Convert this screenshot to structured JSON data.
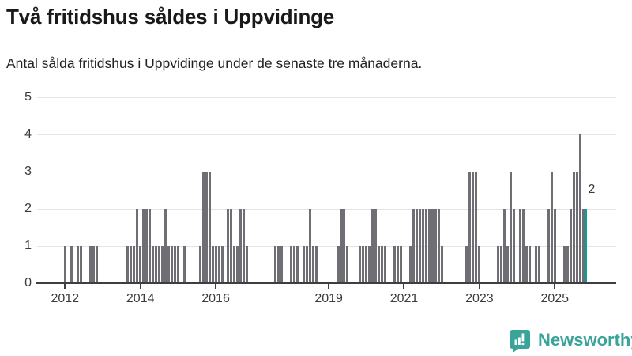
{
  "header": {
    "title": "Två fritidshus såldes i Uppvidinge",
    "subtitle": "Antal sålda fritidshus i Uppvidinge under de senaste tre månaderna."
  },
  "branding": {
    "name": "Newsworthy",
    "color": "#3ba49a",
    "icon": "newsworthy-speech-bubble-bar-chart-icon"
  },
  "chart_data": {
    "type": "bar",
    "title": "Två fritidshus såldes i Uppvidinge",
    "subtitle": "Antal sålda fritidshus i Uppvidinge under de senaste tre månaderna.",
    "x_unit": "month",
    "x_start_label_year": "2012",
    "grid": true,
    "ylim": [
      0,
      5
    ],
    "y_ticks": [
      0,
      1,
      2,
      3,
      4,
      5
    ],
    "x_ticks": [
      {
        "label": "2012",
        "month_index": 0
      },
      {
        "label": "2014",
        "month_index": 24
      },
      {
        "label": "2016",
        "month_index": 48
      },
      {
        "label": "2019",
        "month_index": 84
      },
      {
        "label": "2021",
        "month_index": 108
      },
      {
        "label": "2023",
        "month_index": 132
      },
      {
        "label": "2025",
        "month_index": 156
      }
    ],
    "values": [
      1,
      0,
      1,
      0,
      1,
      1,
      0,
      0,
      1,
      1,
      1,
      0,
      0,
      0,
      0,
      0,
      0,
      0,
      0,
      0,
      1,
      1,
      1,
      2,
      1,
      2,
      2,
      2,
      1,
      1,
      1,
      1,
      2,
      1,
      1,
      1,
      1,
      0,
      1,
      0,
      0,
      0,
      0,
      1,
      3,
      3,
      3,
      1,
      1,
      1,
      1,
      0,
      2,
      2,
      1,
      1,
      2,
      2,
      1,
      0,
      0,
      0,
      0,
      0,
      0,
      0,
      0,
      1,
      1,
      1,
      0,
      0,
      1,
      1,
      1,
      0,
      1,
      1,
      2,
      1,
      1,
      0,
      0,
      0,
      0,
      0,
      0,
      1,
      2,
      2,
      1,
      0,
      0,
      0,
      1,
      1,
      1,
      1,
      2,
      2,
      1,
      1,
      1,
      0,
      0,
      1,
      1,
      1,
      0,
      0,
      1,
      2,
      2,
      2,
      2,
      2,
      2,
      2,
      2,
      2,
      1,
      0,
      0,
      0,
      0,
      0,
      0,
      0,
      1,
      3,
      3,
      3,
      1,
      0,
      0,
      0,
      0,
      0,
      1,
      1,
      2,
      1,
      3,
      2,
      0,
      2,
      2,
      1,
      1,
      0,
      1,
      1,
      0,
      0,
      2,
      3,
      2,
      0,
      0,
      1,
      1,
      2,
      3,
      3,
      4,
      2,
      2
    ],
    "highlight": {
      "month_index": 166,
      "value": 2,
      "label": "2"
    },
    "colors": {
      "bar": "#6e6e74",
      "highlight": "#00a39a",
      "grid": "#e4e4e4",
      "axis": "#3e3e42",
      "labels": "#3a3a3a"
    },
    "legend": null
  }
}
